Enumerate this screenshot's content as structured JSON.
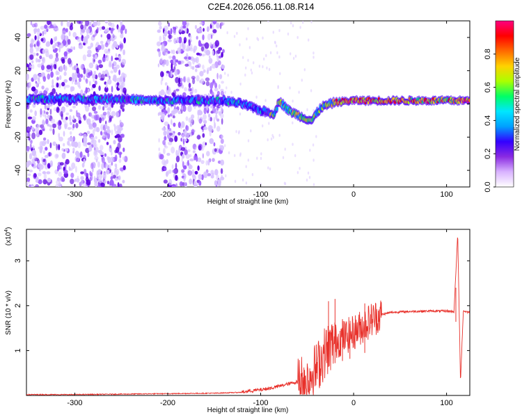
{
  "title": "C2E4.2026.056.11.08.R14",
  "chart_data": [
    {
      "type": "heatmap",
      "xlabel": "Height of straight line (km)",
      "ylabel": "Frequency (Hz)",
      "xlim": [
        -352,
        125
      ],
      "ylim": [
        -50,
        50
      ],
      "x_ticks": [
        -300,
        -200,
        -100,
        0,
        100
      ],
      "y_ticks": [
        -40,
        -20,
        0,
        20,
        40
      ],
      "colorbar": {
        "label": "Normalized spectral amplitude",
        "range": [
          0,
          1
        ],
        "ticks": [
          0.0,
          0.2,
          0.4,
          0.6,
          0.8
        ],
        "tick_labels": [
          "0.0",
          "0.2",
          "0.4",
          "0.6",
          "0.8"
        ],
        "colors": [
          "#ffffff",
          "#d9b3ff",
          "#8a2be2",
          "#3300ff",
          "#00a0ff",
          "#00e6ff",
          "#00ff66",
          "#aaff00",
          "#ffd200",
          "#ff6a00",
          "#ff0000",
          "#ff0080"
        ]
      },
      "ridge": [
        {
          "x": -350,
          "y": 3
        },
        {
          "x": -300,
          "y": 3
        },
        {
          "x": -250,
          "y": 3
        },
        {
          "x": -220,
          "y": 2
        },
        {
          "x": -180,
          "y": 2
        },
        {
          "x": -140,
          "y": 2
        },
        {
          "x": -120,
          "y": 0
        },
        {
          "x": -100,
          "y": -4
        },
        {
          "x": -85,
          "y": -6
        },
        {
          "x": -80,
          "y": 2
        },
        {
          "x": -70,
          "y": -4
        },
        {
          "x": -55,
          "y": -8
        },
        {
          "x": -45,
          "y": -10
        },
        {
          "x": -35,
          "y": -2
        },
        {
          "x": -20,
          "y": 1
        },
        {
          "x": 0,
          "y": 2
        },
        {
          "x": 50,
          "y": 2
        },
        {
          "x": 100,
          "y": 2
        },
        {
          "x": 125,
          "y": 2
        }
      ],
      "noise_regions": [
        [
          -352,
          -245
        ],
        [
          -210,
          -140
        ]
      ]
    },
    {
      "type": "line",
      "xlabel": "Height of straight line (km)",
      "ylabel": "SNR (10 * v/v)",
      "y_scale_label": "(x10",
      "y_scale_exp": "4",
      "xlim": [
        -352,
        125
      ],
      "ylim": [
        0,
        3.7
      ],
      "x_ticks": [
        -300,
        -200,
        -100,
        0,
        100
      ],
      "y_ticks": [
        1,
        2,
        3
      ],
      "line_color": "#e8302a",
      "series": [
        {
          "x": [
            -352,
            -300,
            -250,
            -200,
            -150,
            -120,
            -100,
            -90,
            -80,
            -70,
            -60,
            -50,
            -40,
            -30,
            -20,
            -10,
            0,
            10,
            20,
            30,
            40,
            60,
            80,
            100,
            108,
            112,
            115,
            118,
            125
          ],
          "values": [
            0.02,
            0.02,
            0.03,
            0.04,
            0.05,
            0.07,
            0.12,
            0.15,
            0.2,
            0.25,
            0.3,
            0.4,
            0.6,
            1.0,
            1.2,
            1.3,
            1.4,
            1.55,
            1.7,
            1.8,
            1.85,
            1.87,
            1.88,
            1.88,
            1.87,
            3.6,
            0.3,
            1.88,
            1.85
          ]
        }
      ],
      "spikes": [
        {
          "x": -27,
          "y": 2.1
        },
        {
          "x": -20,
          "y": 2.15
        },
        {
          "x": -12,
          "y": 1.7
        },
        {
          "x": -4,
          "y": 1.6
        },
        {
          "x": 12,
          "y": 2.05
        },
        {
          "x": 110,
          "y": 2.4
        }
      ]
    }
  ]
}
